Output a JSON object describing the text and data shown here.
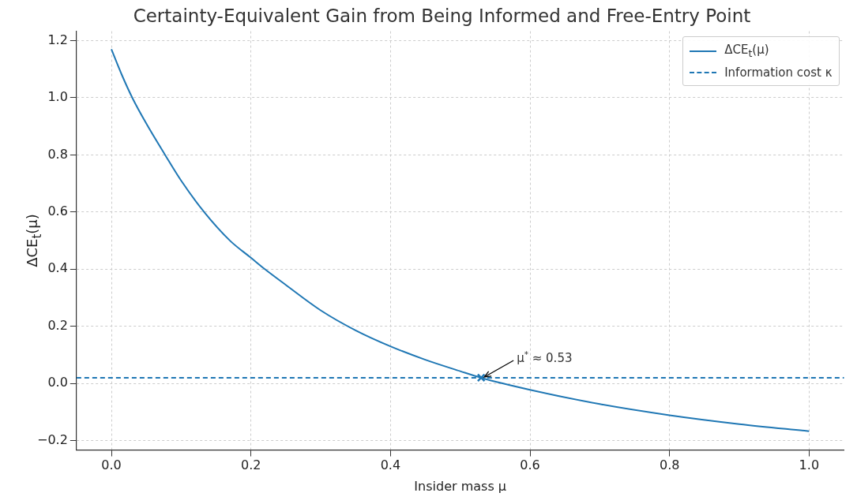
{
  "chart_data": {
    "type": "line",
    "title": "Certainty-Equivalent Gain from Being Informed and Free-Entry Point",
    "xlabel": "Insider mass μ",
    "ylabel": "ΔCE$_{t}$(μ)",
    "series": [
      {
        "name": "ΔCE$_{t}$(μ)",
        "type": "line",
        "color": "#1f77b4",
        "line_style": "solid",
        "x": [
          0,
          0.015,
          0.03,
          0.05,
          0.077,
          0.1,
          0.133,
          0.17,
          0.2,
          0.22,
          0.25,
          0.3,
          0.35,
          0.4,
          0.45,
          0.5,
          0.53,
          0.6,
          0.7,
          0.8,
          0.9,
          1.0
        ],
        "values": [
          1.17,
          1.08,
          1.0,
          0.91,
          0.8,
          0.71,
          0.6,
          0.5,
          0.44,
          0.4,
          0.345,
          0.256,
          0.186,
          0.13,
          0.083,
          0.043,
          0.02,
          -0.022,
          -0.072,
          -0.111,
          -0.142,
          -0.167
        ]
      },
      {
        "type": "scatter",
        "marker": "cross",
        "color": "#1f77b4",
        "x": [
          0.53
        ],
        "values": [
          0.02
        ]
      }
    ],
    "ref_lines": [
      {
        "axis": "y",
        "value": 0.02,
        "label": "Information cost κ",
        "color": "#1f77b4",
        "line_style": "dashed"
      }
    ],
    "annotations": [
      {
        "text": "μ$^{*}$ ≈ 0.53",
        "x": 0.53,
        "y": 0.02
      }
    ],
    "xlim": [
      -0.05,
      1.05
    ],
    "ylim": [
      -0.233,
      1.233
    ],
    "xticks": [
      {
        "value": 0,
        "label": "0.0"
      },
      {
        "value": 0.2,
        "label": "0.2"
      },
      {
        "value": 0.4,
        "label": "0.4"
      },
      {
        "value": 0.6,
        "label": "0.6"
      },
      {
        "value": 0.8,
        "label": "0.8"
      },
      {
        "value": 1,
        "label": "1.0"
      }
    ],
    "yticks": [
      {
        "value": -0.2,
        "label": "−0.2"
      },
      {
        "value": 0,
        "label": "0.0"
      },
      {
        "value": 0.2,
        "label": "0.2"
      },
      {
        "value": 0.4,
        "label": "0.4"
      },
      {
        "value": 0.6,
        "label": "0.6"
      },
      {
        "value": 0.8,
        "label": "0.8"
      },
      {
        "value": 1,
        "label": "1.0"
      },
      {
        "value": 1.2,
        "label": "1.2"
      }
    ],
    "grid": true,
    "legend": "top right"
  }
}
